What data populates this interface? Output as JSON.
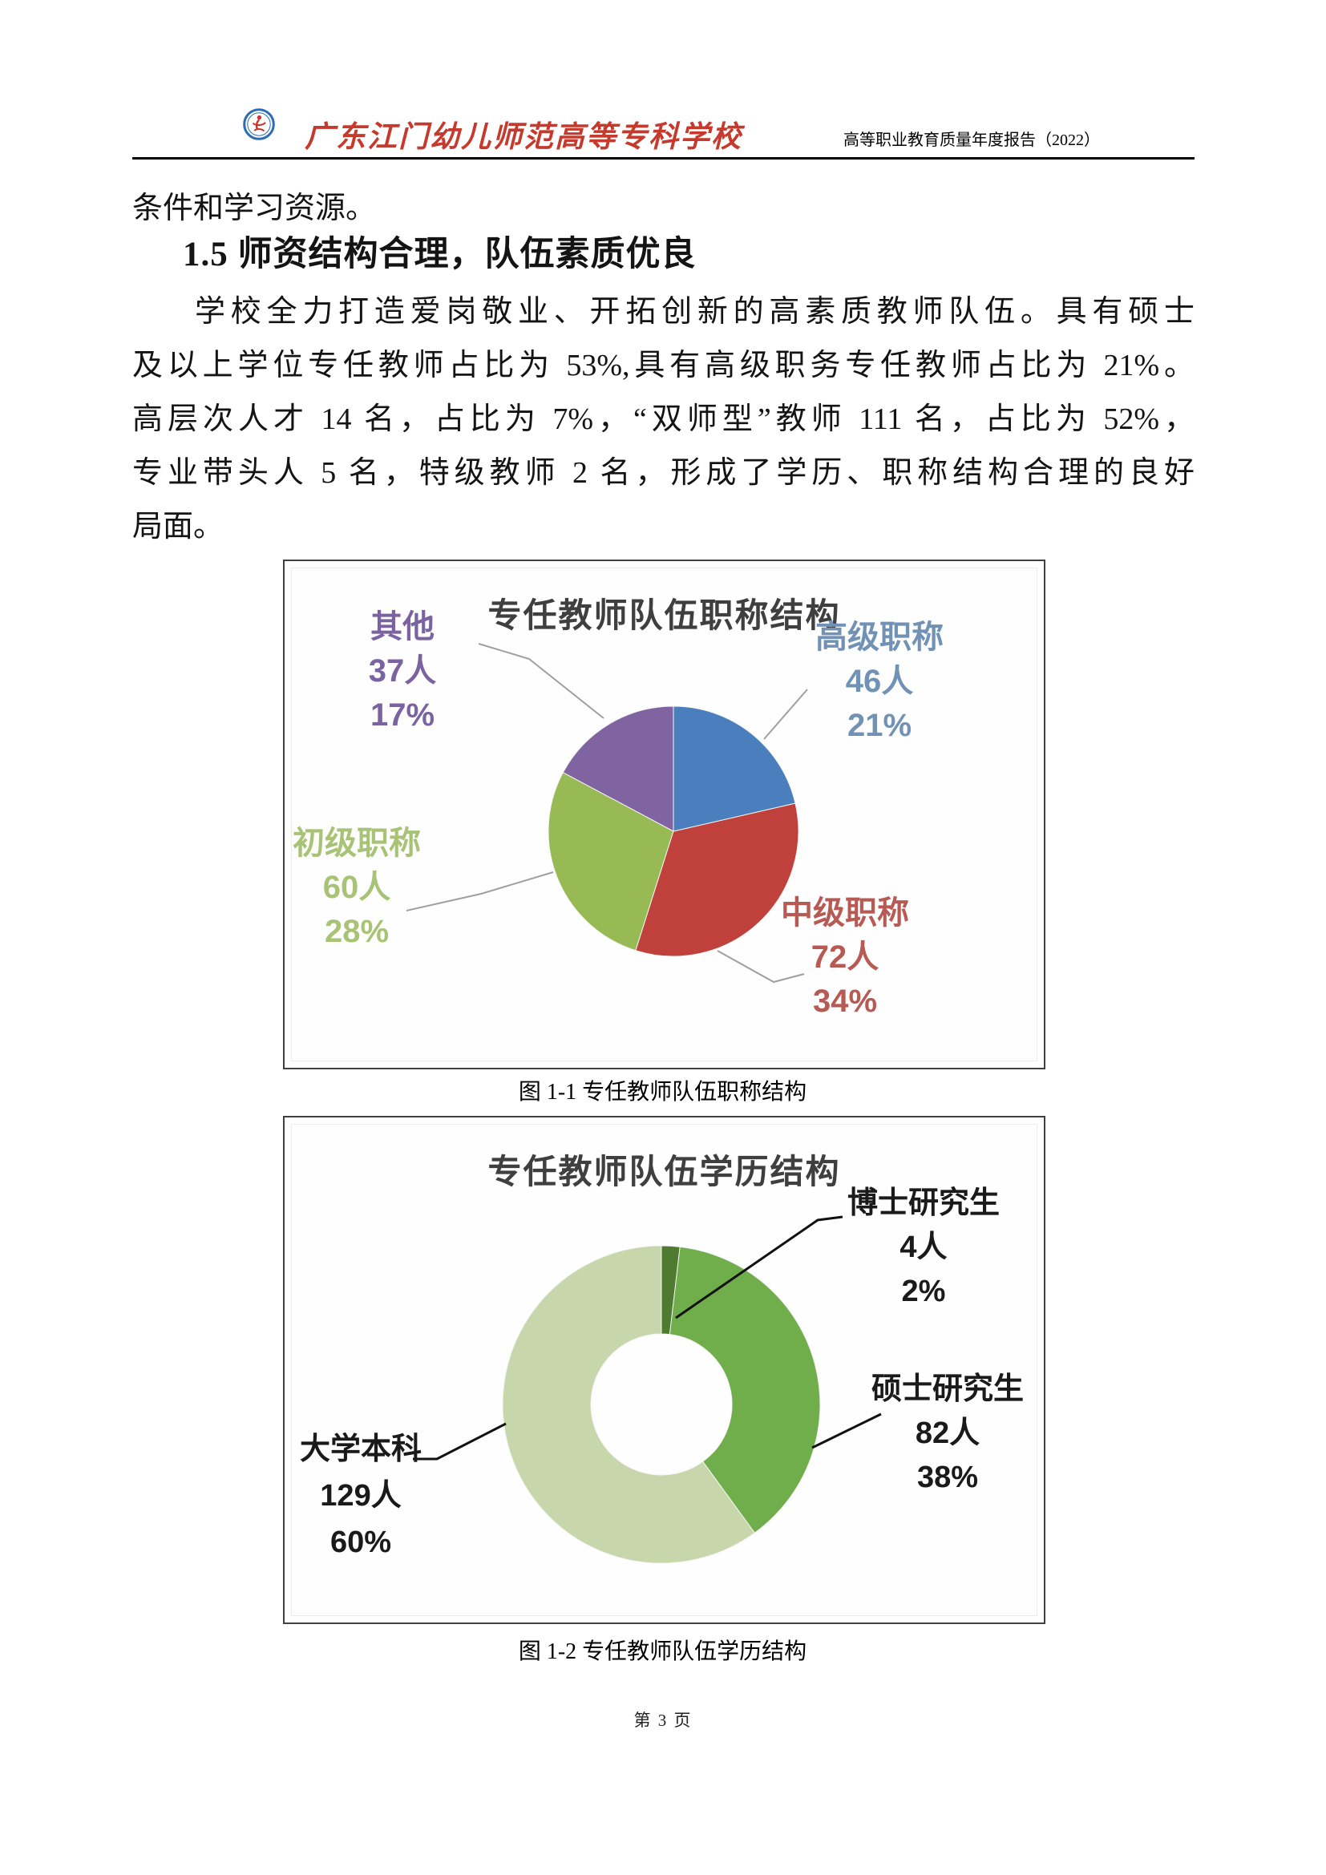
{
  "header": {
    "logo_name": "school-badge",
    "school_name": "广东江门幼儿师范高等专科学校",
    "report_title": "高等职业教育质量年度报告（2022）"
  },
  "body": {
    "intro_line": "条件和学习资源。",
    "section_heading": "1.5 师资结构合理，队伍素质优良",
    "paragraph_lines": [
      "学校全力打造爱岗敬业、开拓创新的高素质教师队伍。具有硕士",
      "及以上学位专任教师占比为 53%,具有高级职务专任教师占比为 21%。",
      "高层次人才 14 名，占比为 7%，“双师型”教师 111 名，占比为 52%，",
      "专业带头人 5 名，特级教师 2 名，形成了学历、职称结构合理的良好",
      "局面。"
    ]
  },
  "figure1": {
    "caption": "图 1-1 专任教师队伍职称结构"
  },
  "figure2": {
    "caption": "图 1-2 专任教师队伍学历结构"
  },
  "footer": {
    "page_number": "第 3 页"
  },
  "chart_data": [
    {
      "type": "pie",
      "title": "专任教师队伍职称结构",
      "categories": [
        "高级职称",
        "中级职称",
        "初级职称",
        "其他"
      ],
      "values": [
        46,
        72,
        60,
        37
      ],
      "counts": [
        "46人",
        "72人",
        "60人",
        "37人"
      ],
      "percents": [
        "21%",
        "34%",
        "28%",
        "17%"
      ],
      "unit": "人",
      "colors": [
        "#4a7ebc",
        "#c0403c",
        "#98ba55",
        "#8064a2"
      ],
      "label_colors": [
        "#7192b5",
        "#b85a54",
        "#a9c376",
        "#7b63a2"
      ],
      "legend_position": "none",
      "start_angle": 0
    },
    {
      "type": "donut",
      "title": "专任教师队伍学历结构",
      "categories": [
        "博士研究生",
        "硕士研究生",
        "大学本科"
      ],
      "values": [
        4,
        82,
        129
      ],
      "counts": [
        "4人",
        "82人",
        "129人"
      ],
      "percents": [
        "2%",
        "38%",
        "60%"
      ],
      "unit": "人",
      "colors": [
        "#4e7b30",
        "#6fae4a",
        "#c7d6ab"
      ],
      "label_colors": [
        "#1a1a1a",
        "#1a1a1a",
        "#1a1a1a"
      ],
      "legend_position": "none",
      "start_angle": 0
    }
  ]
}
